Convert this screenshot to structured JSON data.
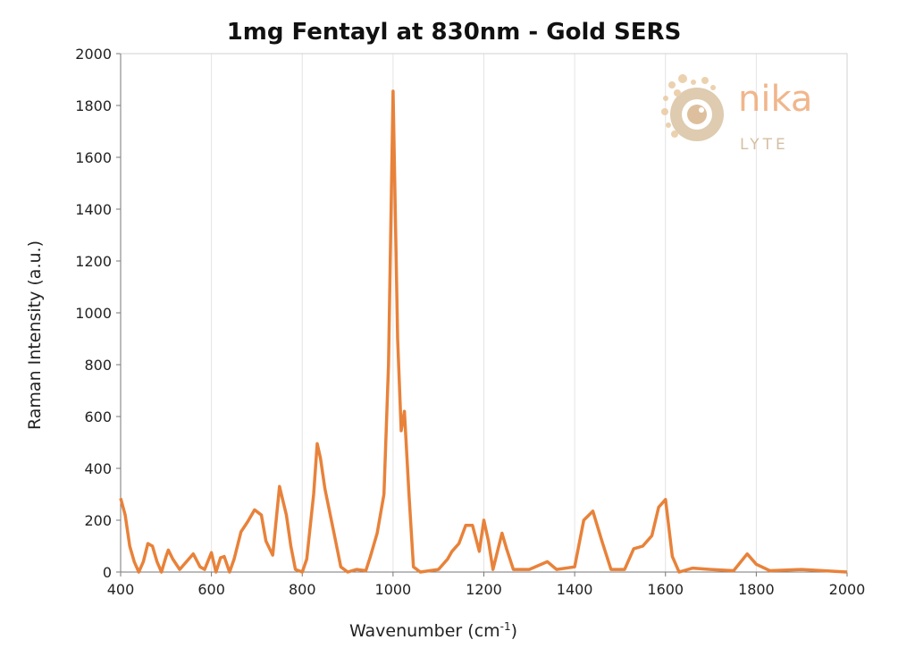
{
  "chart_data": {
    "type": "line",
    "title": "1mg Fentayl at 830nm - Gold SERS",
    "xlabel": "Wavenumber (cm-1)",
    "xlabel_main": "Wavenumber (cm",
    "xlabel_sup": "-1",
    "xlabel_end": ")",
    "ylabel": "Raman Intensity (a.u.)",
    "xlim": [
      400,
      2000
    ],
    "ylim": [
      0,
      2000
    ],
    "xticks": [
      400,
      600,
      800,
      1000,
      1200,
      1400,
      1600,
      1800,
      2000
    ],
    "yticks": [
      0,
      200,
      400,
      600,
      800,
      1000,
      1200,
      1400,
      1600,
      1800,
      2000
    ],
    "grid": "vertical",
    "line_color": "#E8823A",
    "series": [
      {
        "x": [
          400,
          410,
          420,
          430,
          440,
          450,
          460,
          470,
          480,
          490,
          500,
          505,
          515,
          530,
          545,
          560,
          575,
          585,
          600,
          610,
          620,
          628,
          640,
          650,
          665,
          680,
          695,
          710,
          720,
          735,
          750,
          765,
          775,
          785,
          800,
          810,
          825,
          833,
          840,
          850,
          870,
          885,
          900,
          920,
          940,
          950,
          965,
          980,
          990,
          1000,
          1010,
          1018,
          1025,
          1035,
          1045,
          1060,
          1100,
          1120,
          1130,
          1145,
          1160,
          1175,
          1190,
          1200,
          1210,
          1220,
          1240,
          1250,
          1265,
          1300,
          1340,
          1360,
          1400,
          1420,
          1440,
          1460,
          1480,
          1510,
          1530,
          1550,
          1570,
          1585,
          1600,
          1615,
          1630,
          1660,
          1700,
          1750,
          1780,
          1800,
          1830,
          1900,
          2000
        ],
        "y": [
          285,
          220,
          100,
          40,
          0,
          40,
          110,
          100,
          40,
          0,
          60,
          85,
          50,
          10,
          40,
          70,
          20,
          10,
          75,
          0,
          55,
          60,
          0,
          50,
          155,
          195,
          240,
          220,
          120,
          65,
          330,
          220,
          100,
          10,
          0,
          50,
          300,
          495,
          440,
          320,
          150,
          20,
          0,
          10,
          5,
          60,
          150,
          300,
          800,
          1855,
          900,
          545,
          620,
          300,
          20,
          0,
          10,
          50,
          80,
          110,
          180,
          180,
          80,
          200,
          120,
          10,
          150,
          90,
          10,
          10,
          40,
          10,
          20,
          200,
          235,
          120,
          10,
          10,
          90,
          100,
          140,
          250,
          280,
          60,
          0,
          15,
          10,
          5,
          70,
          30,
          5,
          10,
          0
        ]
      }
    ]
  },
  "logo": {
    "text_top": "nika",
    "text_bottom": "LYTE"
  }
}
